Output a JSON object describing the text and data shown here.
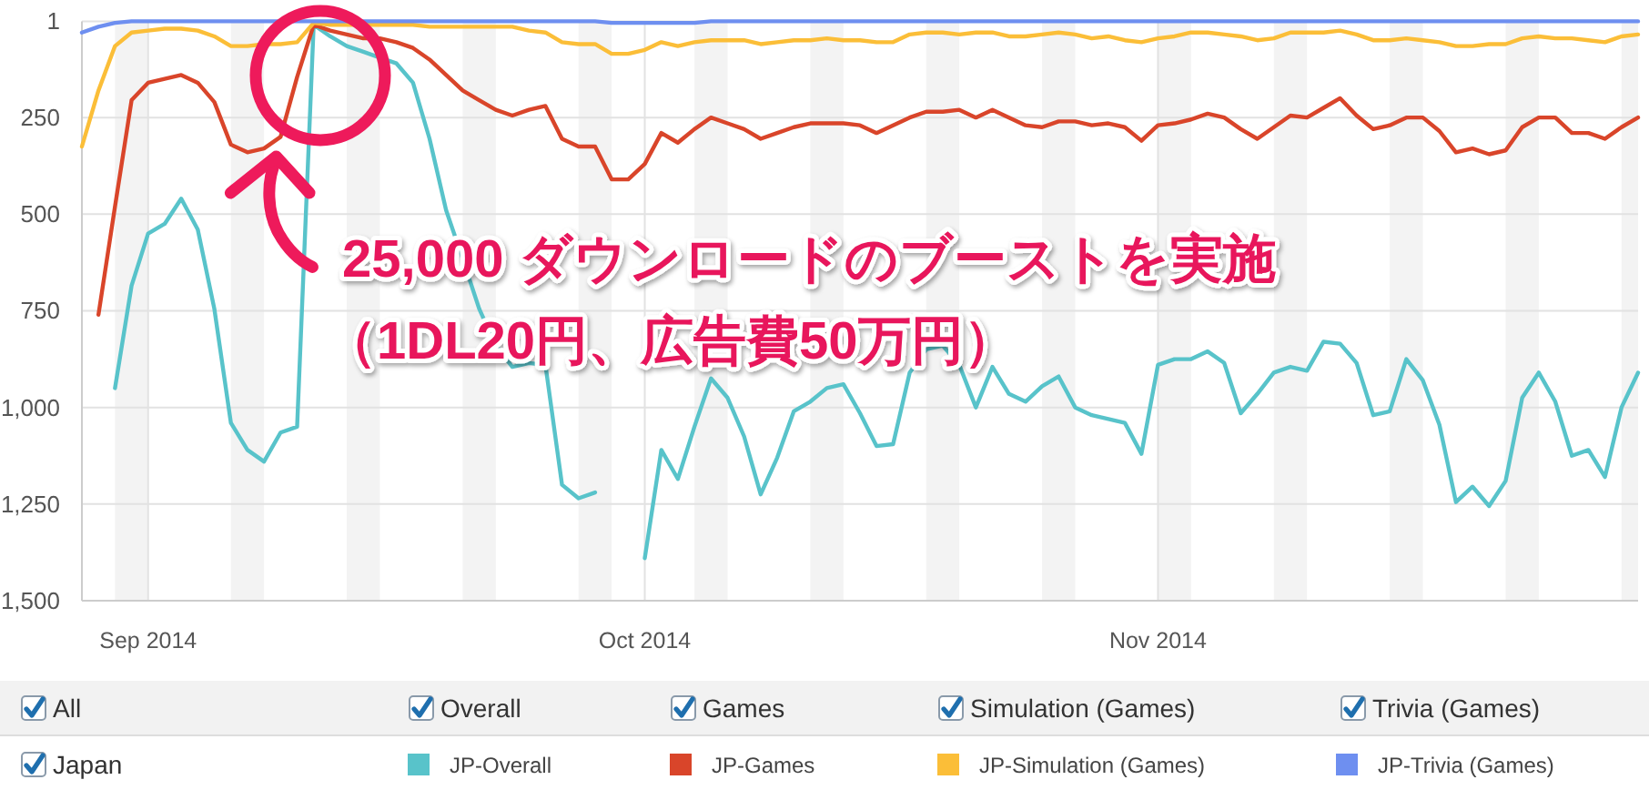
{
  "chart_data": {
    "type": "line",
    "x": [
      "2014-08-28",
      "2014-08-29",
      "2014-08-30",
      "2014-08-31",
      "2014-09-01",
      "2014-09-02",
      "2014-09-03",
      "2014-09-04",
      "2014-09-05",
      "2014-09-06",
      "2014-09-07",
      "2014-09-08",
      "2014-09-09",
      "2014-09-10",
      "2014-09-11",
      "2014-09-12",
      "2014-09-13",
      "2014-09-14",
      "2014-09-15",
      "2014-09-16",
      "2014-09-17",
      "2014-09-18",
      "2014-09-19",
      "2014-09-20",
      "2014-09-21",
      "2014-09-22",
      "2014-09-23",
      "2014-09-24",
      "2014-09-25",
      "2014-09-26",
      "2014-09-27",
      "2014-09-28",
      "2014-09-29",
      "2014-09-30",
      "2014-10-01",
      "2014-10-02",
      "2014-10-03",
      "2014-10-04",
      "2014-10-05",
      "2014-10-06",
      "2014-10-07",
      "2014-10-08",
      "2014-10-09",
      "2014-10-10",
      "2014-10-11",
      "2014-10-12",
      "2014-10-13",
      "2014-10-14",
      "2014-10-15",
      "2014-10-16",
      "2014-10-17",
      "2014-10-18",
      "2014-10-19",
      "2014-10-20",
      "2014-10-21",
      "2014-10-22",
      "2014-10-23",
      "2014-10-24",
      "2014-10-25",
      "2014-10-26",
      "2014-10-27",
      "2014-10-28",
      "2014-10-29",
      "2014-10-30",
      "2014-10-31",
      "2014-11-01",
      "2014-11-02",
      "2014-11-03",
      "2014-11-04",
      "2014-11-05",
      "2014-11-06",
      "2014-11-07",
      "2014-11-08",
      "2014-11-09",
      "2014-11-10",
      "2014-11-11",
      "2014-11-12",
      "2014-11-13",
      "2014-11-14",
      "2014-11-15",
      "2014-11-16",
      "2014-11-17",
      "2014-11-18",
      "2014-11-19",
      "2014-11-20",
      "2014-11-21",
      "2014-11-22",
      "2014-11-23",
      "2014-11-24",
      "2014-11-25",
      "2014-11-26",
      "2014-11-27",
      "2014-11-28",
      "2014-11-29",
      "2014-11-30"
    ],
    "series": [
      {
        "name": "JP-Overall",
        "color": "#58c3ca",
        "values": [
          null,
          null,
          950,
          685,
          550,
          525,
          460,
          540,
          745,
          1040,
          1110,
          1140,
          1065,
          1050,
          10,
          40,
          65,
          80,
          95,
          110,
          160,
          305,
          490,
          615,
          745,
          840,
          895,
          885,
          890,
          1200,
          1235,
          1220,
          null,
          null,
          1390,
          1110,
          1185,
          1050,
          925,
          975,
          1075,
          1225,
          1130,
          1010,
          985,
          950,
          940,
          1015,
          1100,
          1095,
          910,
          850,
          840,
          890,
          1000,
          895,
          965,
          985,
          945,
          920,
          1000,
          1020,
          1030,
          1040,
          1120,
          890,
          875,
          875,
          855,
          885,
          1015,
          965,
          910,
          895,
          905,
          830,
          835,
          885,
          1020,
          1010,
          875,
          930,
          1045,
          1245,
          1205,
          1255,
          1190,
          975,
          910,
          985,
          1125,
          1110,
          1180,
          1000,
          910
        ]
      },
      {
        "name": "JP-Games",
        "color": "#d9452a",
        "values": [
          null,
          760,
          480,
          205,
          160,
          150,
          140,
          160,
          210,
          320,
          340,
          330,
          300,
          145,
          10,
          25,
          35,
          45,
          45,
          55,
          70,
          100,
          140,
          180,
          205,
          230,
          245,
          230,
          220,
          305,
          325,
          325,
          410,
          410,
          370,
          290,
          315,
          280,
          250,
          265,
          280,
          305,
          290,
          275,
          265,
          265,
          265,
          270,
          290,
          270,
          250,
          235,
          235,
          230,
          250,
          230,
          250,
          270,
          275,
          260,
          260,
          270,
          265,
          275,
          310,
          270,
          265,
          255,
          240,
          250,
          280,
          305,
          275,
          245,
          250,
          225,
          200,
          245,
          280,
          270,
          250,
          250,
          285,
          340,
          330,
          345,
          335,
          275,
          250,
          250,
          290,
          290,
          305,
          275,
          250
        ]
      },
      {
        "name": "JP-Simulation (Games)",
        "color": "#fbbe38",
        "values": [
          325,
          180,
          65,
          30,
          25,
          20,
          20,
          25,
          40,
          65,
          65,
          60,
          60,
          55,
          5,
          10,
          10,
          10,
          10,
          10,
          10,
          15,
          15,
          15,
          15,
          15,
          15,
          25,
          30,
          55,
          60,
          60,
          85,
          85,
          75,
          55,
          65,
          55,
          50,
          50,
          50,
          60,
          55,
          50,
          50,
          45,
          50,
          50,
          55,
          55,
          35,
          30,
          30,
          35,
          30,
          30,
          40,
          40,
          35,
          30,
          35,
          45,
          40,
          50,
          55,
          45,
          40,
          30,
          30,
          35,
          40,
          50,
          45,
          30,
          30,
          30,
          25,
          35,
          50,
          50,
          45,
          50,
          55,
          65,
          65,
          60,
          60,
          45,
          40,
          45,
          45,
          50,
          55,
          40,
          35
        ]
      },
      {
        "name": "JP-Trivia (Games)",
        "color": "#6e8ff0",
        "values": [
          30,
          15,
          5,
          1,
          1,
          1,
          1,
          1,
          1,
          1,
          1,
          1,
          1,
          1,
          1,
          1,
          1,
          1,
          1,
          1,
          1,
          1,
          1,
          1,
          1,
          1,
          1,
          1,
          1,
          1,
          1,
          1,
          5,
          5,
          5,
          5,
          5,
          5,
          1,
          1,
          1,
          1,
          1,
          1,
          1,
          1,
          1,
          1,
          1,
          1,
          1,
          1,
          1,
          1,
          1,
          1,
          1,
          1,
          1,
          1,
          1,
          1,
          1,
          1,
          1,
          1,
          1,
          1,
          1,
          1,
          1,
          1,
          1,
          1,
          1,
          1,
          1,
          1,
          1,
          1,
          1,
          1,
          1,
          1,
          1,
          1,
          1,
          1,
          1,
          1,
          1,
          1,
          1,
          1,
          1
        ]
      }
    ],
    "xlim": [
      "2014-08-28",
      "2014-11-30"
    ],
    "xticks": [
      {
        "value": "2014-09-01",
        "label": "Sep 2014"
      },
      {
        "value": "2014-10-01",
        "label": "Oct 2014"
      },
      {
        "value": "2014-11-01",
        "label": "Nov 2014"
      }
    ],
    "ylim": [
      1500,
      1
    ],
    "yticks": [
      1,
      250,
      500,
      750,
      {
        "value": 1000,
        "label": "1,000"
      },
      {
        "value": 1250,
        "label": "1,250"
      },
      {
        "value": 1500,
        "label": "1,500"
      }
    ],
    "bands": [
      {
        "axis": "x",
        "from": "2014-08-30",
        "to": "2014-09-01",
        "color": "#f3f3f3"
      },
      {
        "axis": "x",
        "from": "2014-09-06",
        "to": "2014-09-08",
        "color": "#f3f3f3"
      },
      {
        "axis": "x",
        "from": "2014-09-13",
        "to": "2014-09-15",
        "color": "#f3f3f3"
      },
      {
        "axis": "x",
        "from": "2014-09-20",
        "to": "2014-09-22",
        "color": "#f3f3f3"
      },
      {
        "axis": "x",
        "from": "2014-09-27",
        "to": "2014-09-29",
        "color": "#f3f3f3"
      },
      {
        "axis": "x",
        "from": "2014-10-04",
        "to": "2014-10-06",
        "color": "#f3f3f3"
      },
      {
        "axis": "x",
        "from": "2014-10-11",
        "to": "2014-10-13",
        "color": "#f3f3f3"
      },
      {
        "axis": "x",
        "from": "2014-10-18",
        "to": "2014-10-20",
        "color": "#f3f3f3"
      },
      {
        "axis": "x",
        "from": "2014-10-25",
        "to": "2014-10-27",
        "color": "#f3f3f3"
      },
      {
        "axis": "x",
        "from": "2014-11-01",
        "to": "2014-11-03",
        "color": "#f3f3f3"
      },
      {
        "axis": "x",
        "from": "2014-11-08",
        "to": "2014-11-10",
        "color": "#f3f3f3"
      },
      {
        "axis": "x",
        "from": "2014-11-15",
        "to": "2014-11-17",
        "color": "#f3f3f3"
      },
      {
        "axis": "x",
        "from": "2014-11-22",
        "to": "2014-11-24",
        "color": "#f3f3f3"
      },
      {
        "axis": "x",
        "from": "2014-11-29",
        "to": "2014-11-30",
        "color": "#f3f3f3"
      }
    ],
    "grid": true,
    "legend": "bottom",
    "legend_title": "Japan",
    "annotations": [
      "25,000 ダウンロードのブーストを実施（1DL20円、広告費50万円）",
      "All",
      "Overall",
      "Games",
      "Simulation (Games)",
      "Trivia (Games)"
    ]
  }
}
